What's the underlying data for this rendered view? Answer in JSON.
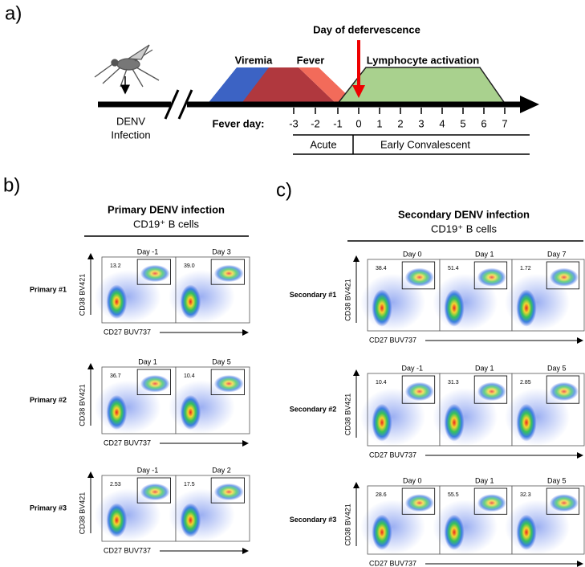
{
  "panel_a": {
    "label": "a)",
    "defervescence_label": "Day of defervescence",
    "phases": [
      "Viremia",
      "Fever",
      "Lymphocyte activation"
    ],
    "infection_label": [
      "DENV",
      "Infection"
    ],
    "fever_day_label": "Fever day:",
    "fever_days": [
      "-3",
      "-2",
      "-1",
      "0",
      "1",
      "2",
      "3",
      "4",
      "5",
      "6",
      "7"
    ],
    "periods": [
      "Acute",
      "Early Convalescent"
    ]
  },
  "panel_b": {
    "label": "b)",
    "title": "Primary DENV infection",
    "subtitle": "CD19⁺ B cells",
    "y_axis_label": "CD38 BV421",
    "x_axis_label": "CD27 BUV737",
    "rows": [
      {
        "name": "Primary #1",
        "plots": [
          {
            "day": "Day -1",
            "gate": "13.2"
          },
          {
            "day": "Day 3",
            "gate": "39.0"
          }
        ]
      },
      {
        "name": "Primary #2",
        "plots": [
          {
            "day": "Day 1",
            "gate": "36.7"
          },
          {
            "day": "Day 5",
            "gate": "10.4"
          }
        ]
      },
      {
        "name": "Primary #3",
        "plots": [
          {
            "day": "Day -1",
            "gate": "2.53"
          },
          {
            "day": "Day 2",
            "gate": "17.5"
          }
        ]
      }
    ]
  },
  "panel_c": {
    "label": "c)",
    "title": "Secondary DENV infection",
    "subtitle": "CD19⁺ B cells",
    "y_axis_label": "CD38 BV421",
    "x_axis_label": "CD27 BUV737",
    "rows": [
      {
        "name": "Secondary #1",
        "plots": [
          {
            "day": "Day 0",
            "gate": "38.4"
          },
          {
            "day": "Day 1",
            "gate": "51.4"
          },
          {
            "day": "Day 7",
            "gate": "1.72"
          }
        ]
      },
      {
        "name": "Secondary #2",
        "plots": [
          {
            "day": "Day -1",
            "gate": "10.4"
          },
          {
            "day": "Day 1",
            "gate": "31.3"
          },
          {
            "day": "Day 5",
            "gate": "2.85"
          }
        ]
      },
      {
        "name": "Secondary #3",
        "plots": [
          {
            "day": "Day 0",
            "gate": "28.6"
          },
          {
            "day": "Day 1",
            "gate": "55.5"
          },
          {
            "day": "Day 5",
            "gate": "32.3"
          }
        ]
      }
    ]
  }
}
